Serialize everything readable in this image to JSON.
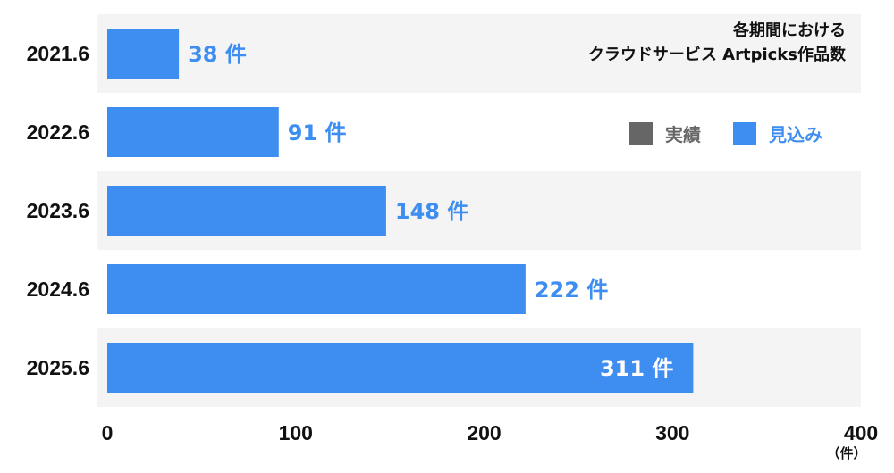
{
  "chart_data": {
    "type": "bar",
    "orientation": "horizontal",
    "title_lines": [
      "各期間における",
      "クラウドサービス Artpicks作品数"
    ],
    "categories": [
      "2021.6",
      "2022.6",
      "2023.6",
      "2024.6",
      "2025.6"
    ],
    "series": [
      {
        "name": "見込み",
        "values": [
          38,
          91,
          148,
          222,
          311
        ]
      }
    ],
    "value_labels": [
      "38 件",
      "91 件",
      "148 件",
      "222 件",
      "311 件"
    ],
    "xlim": [
      0,
      400
    ],
    "xticks": [
      0,
      100,
      200,
      300,
      400
    ],
    "xtick_labels": [
      "0",
      "100",
      "200",
      "300",
      "400"
    ],
    "x_unit": "（件）",
    "legend": {
      "placement": "top-right",
      "items": [
        {
          "name": "実績",
          "color": "#666666"
        },
        {
          "name": "見込み",
          "color": "#3d8ef0"
        }
      ]
    },
    "grid": false
  },
  "colors": {
    "bar": "#3d8ef0",
    "band": "#f4f4f4",
    "value_outside": "#3d8ef0",
    "value_inside": "#ffffff",
    "actual": "#666666"
  }
}
